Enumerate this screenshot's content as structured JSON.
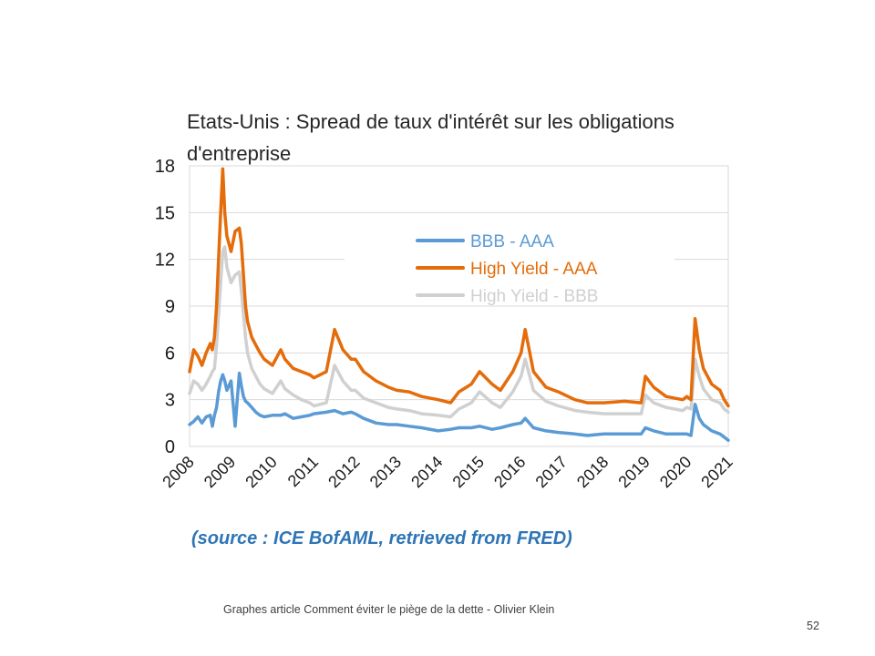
{
  "chart_data": {
    "type": "line",
    "title_lines": [
      "Etats-Unis : Spread de taux d'intérêt sur les obligations",
      "d'entreprise"
    ],
    "xlabel": "",
    "ylabel": "",
    "ylim": [
      0,
      18
    ],
    "yticks": [
      "0",
      "3",
      "6",
      "9",
      "12",
      "15",
      "18"
    ],
    "xlim": [
      2008,
      2021
    ],
    "xticks": [
      "2008",
      "2009",
      "2010",
      "2011",
      "2012",
      "2013",
      "2014",
      "2015",
      "2016",
      "2017",
      "2018",
      "2019",
      "2020",
      "2021"
    ],
    "grid": "horizontal",
    "legend_position": "top-right",
    "x": [
      2008.0,
      2008.1,
      2008.2,
      2008.3,
      2008.4,
      2008.5,
      2008.55,
      2008.6,
      2008.65,
      2008.7,
      2008.75,
      2008.8,
      2008.85,
      2008.9,
      2009.0,
      2009.1,
      2009.2,
      2009.25,
      2009.3,
      2009.35,
      2009.4,
      2009.5,
      2009.6,
      2009.7,
      2009.8,
      2010.0,
      2010.2,
      2010.3,
      2010.5,
      2010.7,
      2010.9,
      2011.0,
      2011.3,
      2011.5,
      2011.7,
      2011.9,
      2012.0,
      2012.2,
      2012.5,
      2012.8,
      2013.0,
      2013.3,
      2013.6,
      2014.0,
      2014.3,
      2014.5,
      2014.8,
      2015.0,
      2015.3,
      2015.5,
      2015.8,
      2016.0,
      2016.1,
      2016.3,
      2016.6,
      2016.9,
      2017.3,
      2017.6,
      2018.0,
      2018.5,
      2018.9,
      2019.0,
      2019.2,
      2019.5,
      2019.9,
      2020.0,
      2020.1,
      2020.2,
      2020.3,
      2020.4,
      2020.6,
      2020.8,
      2020.9,
      2021.0
    ],
    "series": [
      {
        "name": "BBB - AAA",
        "color": "#5b9bd5",
        "values": [
          1.4,
          1.6,
          1.9,
          1.5,
          1.9,
          2.0,
          1.3,
          2.0,
          2.5,
          3.5,
          4.2,
          4.6,
          4.2,
          3.6,
          4.2,
          1.3,
          4.7,
          3.9,
          3.2,
          2.9,
          2.8,
          2.5,
          2.2,
          2.0,
          1.9,
          2.0,
          2.0,
          2.1,
          1.8,
          1.9,
          2.0,
          2.1,
          2.2,
          2.3,
          2.1,
          2.2,
          2.1,
          1.8,
          1.5,
          1.4,
          1.4,
          1.3,
          1.2,
          1.0,
          1.1,
          1.2,
          1.2,
          1.3,
          1.1,
          1.2,
          1.4,
          1.5,
          1.8,
          1.2,
          1.0,
          0.9,
          0.8,
          0.7,
          0.8,
          0.8,
          0.8,
          1.2,
          1.0,
          0.8,
          0.8,
          0.8,
          0.7,
          2.7,
          1.8,
          1.4,
          1.0,
          0.8,
          0.6,
          0.4
        ]
      },
      {
        "name": "High Yield - AAA",
        "color": "#e46c0a",
        "values": [
          4.8,
          6.2,
          5.8,
          5.2,
          6.0,
          6.6,
          6.2,
          7.0,
          9.0,
          12.0,
          15.0,
          17.8,
          15.0,
          13.5,
          12.5,
          13.8,
          14.0,
          13.0,
          11.0,
          9.0,
          8.0,
          7.0,
          6.5,
          6.0,
          5.6,
          5.2,
          6.2,
          5.6,
          5.0,
          4.8,
          4.6,
          4.4,
          4.8,
          7.5,
          6.2,
          5.6,
          5.6,
          4.8,
          4.2,
          3.8,
          3.6,
          3.5,
          3.2,
          3.0,
          2.8,
          3.5,
          4.0,
          4.8,
          4.0,
          3.6,
          4.8,
          6.0,
          7.5,
          4.8,
          3.8,
          3.5,
          3.0,
          2.8,
          2.8,
          2.9,
          2.8,
          4.5,
          3.8,
          3.2,
          3.0,
          3.2,
          3.0,
          8.2,
          6.2,
          5.0,
          4.0,
          3.6,
          3.0,
          2.6
        ]
      },
      {
        "name": "High Yield - BBB",
        "color": "#d0d0d0",
        "values": [
          3.4,
          4.2,
          4.0,
          3.6,
          4.0,
          4.5,
          4.8,
          5.0,
          6.5,
          8.5,
          10.5,
          12.5,
          12.8,
          11.5,
          10.5,
          11.0,
          11.2,
          10.0,
          8.5,
          7.0,
          6.0,
          5.0,
          4.5,
          4.0,
          3.7,
          3.4,
          4.2,
          3.7,
          3.3,
          3.0,
          2.8,
          2.6,
          2.8,
          5.2,
          4.2,
          3.6,
          3.6,
          3.1,
          2.8,
          2.5,
          2.4,
          2.3,
          2.1,
          2.0,
          1.9,
          2.4,
          2.8,
          3.5,
          2.8,
          2.5,
          3.5,
          4.5,
          5.6,
          3.6,
          2.9,
          2.6,
          2.3,
          2.2,
          2.1,
          2.1,
          2.1,
          3.3,
          2.8,
          2.5,
          2.3,
          2.5,
          2.4,
          5.6,
          4.5,
          3.7,
          3.0,
          2.8,
          2.4,
          2.2
        ]
      }
    ]
  },
  "source_label": "(source : ICE BofAML, retrieved from FRED)",
  "footer_text": "Graphes article Comment  éviter le piège de la dette - Olivier Klein",
  "slide_number": "52",
  "colors": {
    "source": "#2e75b6",
    "grid": "#d9d9d9",
    "border": "#d9d9d9"
  }
}
